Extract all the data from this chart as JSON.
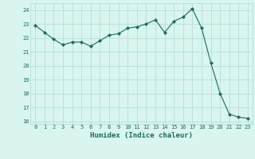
{
  "x": [
    0,
    1,
    2,
    3,
    4,
    5,
    6,
    7,
    8,
    9,
    10,
    11,
    12,
    13,
    14,
    15,
    16,
    17,
    18,
    19,
    20,
    21,
    22,
    23
  ],
  "y": [
    22.9,
    22.4,
    21.9,
    21.5,
    21.7,
    21.7,
    21.4,
    21.8,
    22.2,
    22.3,
    22.7,
    22.8,
    23.0,
    23.3,
    22.4,
    23.2,
    23.5,
    24.1,
    22.7,
    20.2,
    18.0,
    16.5,
    16.3,
    16.2
  ],
  "line_color": "#1a6b5a",
  "bg_color": "#d8f5f0",
  "grid_color": "#b8ddd8",
  "xlabel": "Humidex (Indice chaleur)",
  "ylim": [
    15.8,
    24.5
  ],
  "xlim": [
    -0.5,
    23.5
  ],
  "yticks": [
    16,
    17,
    18,
    19,
    20,
    21,
    22,
    23,
    24
  ],
  "xticks": [
    0,
    1,
    2,
    3,
    4,
    5,
    6,
    7,
    8,
    9,
    10,
    11,
    12,
    13,
    14,
    15,
    16,
    17,
    18,
    19,
    20,
    21,
    22,
    23
  ],
  "tick_color": "#1a6b5a",
  "label_color": "#1a6b5a",
  "tick_fontsize": 5.0,
  "xlabel_fontsize": 6.5,
  "linewidth": 0.8,
  "markersize": 2.0
}
